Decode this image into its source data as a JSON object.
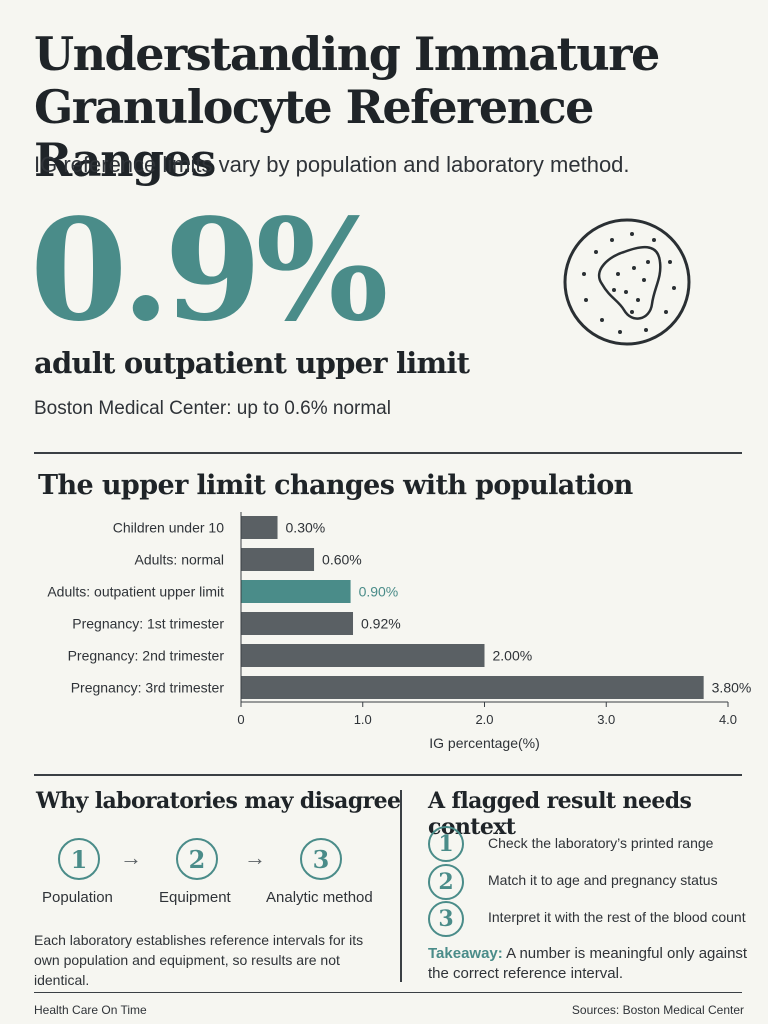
{
  "header": {
    "title": "Understanding Immature Granulocyte Reference Ranges",
    "subtitle": "IG reference limits vary by population and laboratory method."
  },
  "hero": {
    "value": "0.9%",
    "caption": "adult outpatient upper limit",
    "note": "Boston Medical Center: up to 0.6% normal",
    "icon": "granulocyte-cell-icon"
  },
  "chart_section": {
    "title": "The upper limit changes with population"
  },
  "chart_data": {
    "type": "bar",
    "orientation": "horizontal",
    "categories": [
      "Children under 10",
      "Adults: normal",
      "Adults: outpatient upper limit",
      "Pregnancy: 1st trimester",
      "Pregnancy: 2nd trimester",
      "Pregnancy: 3rd trimester"
    ],
    "values": [
      0.3,
      0.6,
      0.9,
      0.92,
      2.0,
      3.8
    ],
    "value_labels": [
      "0.30%",
      "0.60%",
      "0.90%",
      "0.92%",
      "2.00%",
      "3.80%"
    ],
    "highlight_index": 2,
    "xlabel": "IG percentage(%)",
    "xlim": [
      0,
      4.0
    ],
    "xticks": [
      "0",
      "1.0",
      "2.0",
      "3.0",
      "4.0"
    ],
    "grid": false,
    "colors": {
      "bar": "#5a6064",
      "highlight": "#4a8c89"
    }
  },
  "labs": {
    "title": "Why laboratories may disagree",
    "steps": [
      {
        "num": "1",
        "label": "Population"
      },
      {
        "num": "2",
        "label": "Equipment"
      },
      {
        "num": "3",
        "label": "Analytic method"
      }
    ],
    "note": "Each laboratory establishes reference intervals for its own population and equipment, so results are not identical."
  },
  "context": {
    "title": "A flagged result needs context",
    "items": [
      {
        "num": "1",
        "text": "Check the laboratory’s printed range"
      },
      {
        "num": "2",
        "text": "Match it to age and pregnancy status"
      },
      {
        "num": "3",
        "text": "Interpret it with the rest of the blood count"
      }
    ],
    "takeaway_label": "Takeaway:",
    "takeaway_text": " A number is meaningful only against the correct reference interval."
  },
  "footer": {
    "left": "Health Care On Time",
    "right": "Sources: Boston Medical Center"
  },
  "colors": {
    "accent": "#4a8c89",
    "text": "#1f2428",
    "background": "#f6f6f1"
  }
}
